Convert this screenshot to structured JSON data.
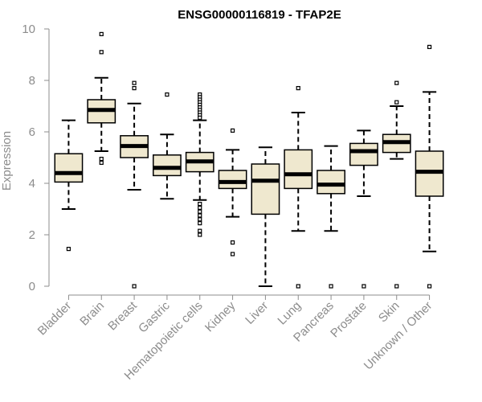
{
  "chart_data": {
    "type": "boxplot",
    "title": "ENSG00000116819 - TFAP2E",
    "xlabel": "",
    "ylabel": "Expression",
    "ylim": [
      0,
      10
    ],
    "yticks": [
      0,
      2,
      4,
      6,
      8,
      10
    ],
    "box_fill": "#efe8cf",
    "categories": [
      "Bladder",
      "Brain",
      "Breast",
      "Gastric",
      "Hematopoietic cells",
      "Kidney",
      "Liver",
      "Lung",
      "Pancreas",
      "Prostate",
      "Skin",
      "Unknown / Other"
    ],
    "boxes": [
      {
        "whisker_low": 3.0,
        "q1": 4.05,
        "median": 4.4,
        "q3": 5.15,
        "whisker_high": 6.45,
        "outliers": [
          1.45
        ]
      },
      {
        "whisker_low": 5.25,
        "q1": 6.35,
        "median": 6.85,
        "q3": 7.25,
        "whisker_high": 8.1,
        "outliers": [
          9.8,
          9.1,
          4.95,
          4.8
        ]
      },
      {
        "whisker_low": 3.75,
        "q1": 5.0,
        "median": 5.45,
        "q3": 5.85,
        "whisker_high": 7.1,
        "outliers": [
          7.9,
          7.7,
          0.0
        ]
      },
      {
        "whisker_low": 3.4,
        "q1": 4.3,
        "median": 4.6,
        "q3": 5.1,
        "whisker_high": 5.9,
        "outliers": [
          7.45
        ]
      },
      {
        "whisker_low": 3.35,
        "q1": 4.45,
        "median": 4.85,
        "q3": 5.2,
        "whisker_high": 6.45,
        "outliers": [
          7.45,
          7.35,
          7.25,
          7.15,
          7.05,
          6.95,
          6.85,
          6.75,
          6.65,
          6.55,
          3.2,
          3.05,
          2.9,
          2.75,
          2.6,
          2.45,
          2.15,
          2.0
        ]
      },
      {
        "whisker_low": 2.7,
        "q1": 3.8,
        "median": 4.05,
        "q3": 4.5,
        "whisker_high": 5.3,
        "outliers": [
          6.05,
          1.7,
          1.25
        ]
      },
      {
        "whisker_low": 0.0,
        "q1": 2.8,
        "median": 4.1,
        "q3": 4.75,
        "whisker_high": 5.4,
        "outliers": []
      },
      {
        "whisker_low": 2.15,
        "q1": 3.8,
        "median": 4.35,
        "q3": 5.3,
        "whisker_high": 6.75,
        "outliers": [
          7.7,
          0.0
        ]
      },
      {
        "whisker_low": 2.15,
        "q1": 3.6,
        "median": 3.95,
        "q3": 4.5,
        "whisker_high": 5.45,
        "outliers": [
          0.0
        ]
      },
      {
        "whisker_low": 3.5,
        "q1": 4.7,
        "median": 5.25,
        "q3": 5.55,
        "whisker_high": 6.05,
        "outliers": [
          0.0
        ]
      },
      {
        "whisker_low": 4.95,
        "q1": 5.2,
        "median": 5.6,
        "q3": 5.9,
        "whisker_high": 7.0,
        "outliers": [
          7.9,
          7.15,
          0.0
        ]
      },
      {
        "whisker_low": 1.35,
        "q1": 3.5,
        "median": 4.45,
        "q3": 5.25,
        "whisker_high": 7.55,
        "outliers": [
          9.3,
          0.0
        ]
      }
    ]
  }
}
